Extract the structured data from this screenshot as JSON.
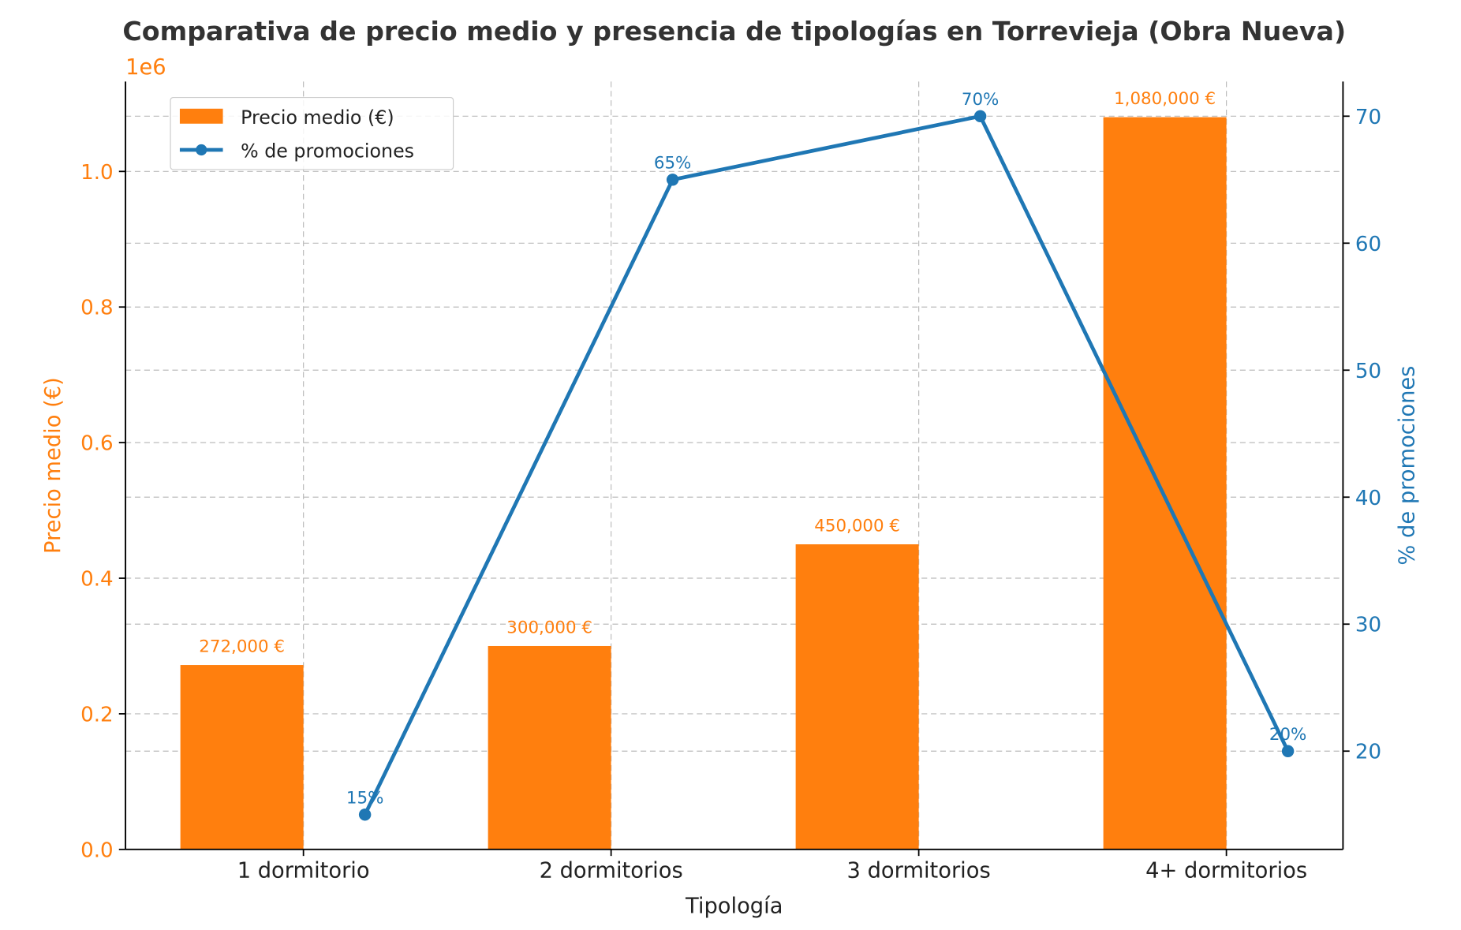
{
  "chart_data": {
    "type": "bar+line",
    "title": "Comparativa de precio medio y presencia de tipologías en Torrevieja (Obra Nueva)",
    "xlabel": "Tipología",
    "categories": [
      "1 dormitorio",
      "2 dormitorios",
      "3 dormitorios",
      "4+ dormitorios"
    ],
    "left_axis": {
      "label": "Precio medio (€)",
      "offset_text": "1e6",
      "ticks": [
        0,
        0.2,
        0.4,
        0.6,
        0.8,
        1.0
      ],
      "tick_labels": [
        "0.0",
        "0.2",
        "0.4",
        "0.6",
        "0.8",
        "1.0"
      ],
      "ylim": [
        0,
        1132600
      ],
      "color": "#ff7f0e"
    },
    "right_axis": {
      "label": "% de promociones",
      "ticks": [
        20,
        30,
        40,
        50,
        60,
        70
      ],
      "tick_labels": [
        "20",
        "30",
        "40",
        "50",
        "60",
        "70"
      ],
      "ylim": [
        12.26,
        72.73
      ],
      "color": "#1f77b4"
    },
    "series": [
      {
        "name": "Precio medio (€)",
        "type": "bar",
        "values": [
          272000,
          300000,
          450000,
          1080000
        ],
        "labels": [
          "272,000 €",
          "300,000 €",
          "450,000 €",
          "1,080,000 €"
        ],
        "color": "#ff7f0e"
      },
      {
        "name": "% de promociones",
        "type": "line",
        "values": [
          15,
          65,
          70,
          20
        ],
        "labels": [
          "15%",
          "65%",
          "70%",
          "20%"
        ],
        "color": "#1f77b4"
      }
    ],
    "grid": true,
    "legend": "top-left"
  }
}
